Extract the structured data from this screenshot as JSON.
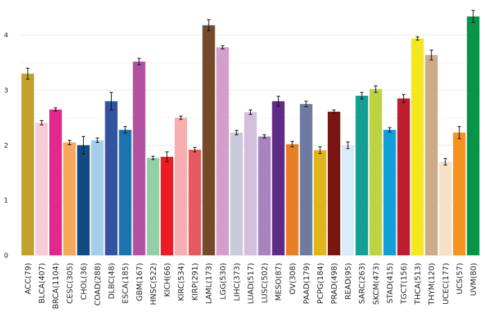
{
  "chart_data": {
    "type": "bar",
    "title": "",
    "xlabel": "",
    "ylabel": "",
    "ylim": [
      0,
      4.45
    ],
    "yticks": [
      0,
      1,
      2,
      3,
      4
    ],
    "grid": true,
    "categories": [
      "ACC(79)",
      "BLCA(407)",
      "BRCA(1104)",
      "CESC(305)",
      "CHOL(36)",
      "COAD(288)",
      "DLBC(48)",
      "ESCA(185)",
      "GBM(167)",
      "HNSC(522)",
      "KICH(66)",
      "KIRC(534)",
      "KIRP(291)",
      "LAML(173)",
      "LGG(530)",
      "LIHC(373)",
      "LUAD(517)",
      "LUSC(502)",
      "MESO(87)",
      "OV(308)",
      "PAAD(179)",
      "PCPG(184)",
      "PRAD(498)",
      "READ(95)",
      "SARC(263)",
      "SKCM(473)",
      "STAD(415)",
      "TGCT(156)",
      "THCA(513)",
      "THYM(120)",
      "UCEC(177)",
      "UCS(57)",
      "UVM(80)"
    ],
    "values": [
      3.3,
      2.41,
      2.65,
      2.05,
      2.0,
      2.09,
      2.8,
      2.28,
      3.52,
      1.77,
      1.79,
      2.5,
      1.92,
      4.18,
      3.78,
      2.23,
      2.6,
      2.16,
      2.8,
      2.02,
      2.75,
      1.91,
      2.61,
      2.0,
      2.9,
      3.02,
      2.28,
      2.85,
      3.94,
      3.64,
      1.7,
      2.23,
      4.34
    ],
    "errors": [
      0.1,
      0.04,
      0.03,
      0.04,
      0.16,
      0.04,
      0.16,
      0.06,
      0.06,
      0.03,
      0.09,
      0.03,
      0.04,
      0.1,
      0.03,
      0.04,
      0.04,
      0.03,
      0.09,
      0.05,
      0.05,
      0.06,
      0.03,
      0.06,
      0.06,
      0.06,
      0.04,
      0.07,
      0.03,
      0.09,
      0.06,
      0.11,
      0.11
    ],
    "colors": [
      "#c0a22d",
      "#f9cad7",
      "#e2288c",
      "#f6a95a",
      "#134b80",
      "#a3cde9",
      "#3353a0",
      "#1b73ad",
      "#b052a0",
      "#95cda6",
      "#ec1c24",
      "#f7aeb0",
      "#e55a5f",
      "#744a2a",
      "#d49fcb",
      "#c9cbdc",
      "#d2bfdc",
      "#a883c0",
      "#5e2b85",
      "#e97f24",
      "#6f7aa0",
      "#e0b51c",
      "#7a1512",
      "#d9edf8",
      "#139f96",
      "#bcd442",
      "#119ed9",
      "#bd1e2f",
      "#f3e81e",
      "#cbab8a",
      "#f6e1c6",
      "#f4931f",
      "#069447"
    ]
  }
}
